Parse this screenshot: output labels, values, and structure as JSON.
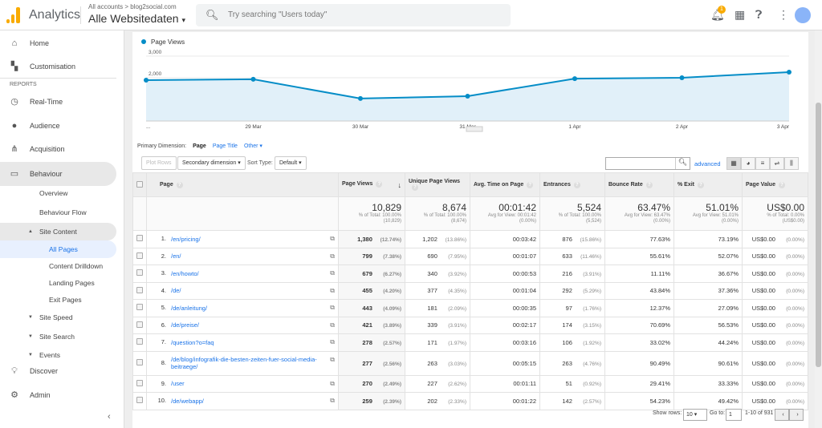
{
  "header": {
    "app_name": "Analytics",
    "breadcrumb": "All accounts > blog2social.com",
    "property": "Alle Websitedaten",
    "search_placeholder": "Try searching \"Users today\"",
    "notification_count": "1"
  },
  "sidebar": {
    "reports_label": "REPORTS",
    "items": [
      {
        "label": "Home",
        "icon": "home-icon"
      },
      {
        "label": "Customisation",
        "icon": "dashboard-icon"
      },
      {
        "label": "Real-Time",
        "icon": "clock-icon"
      },
      {
        "label": "Audience",
        "icon": "person-icon"
      },
      {
        "label": "Acquisition",
        "icon": "acquisition-icon"
      },
      {
        "label": "Behaviour",
        "icon": "behaviour-icon"
      },
      {
        "label": "Overview"
      },
      {
        "label": "Behaviour Flow"
      },
      {
        "label": "Site Content"
      },
      {
        "label": "All Pages"
      },
      {
        "label": "Content Drilldown"
      },
      {
        "label": "Landing Pages"
      },
      {
        "label": "Exit Pages"
      },
      {
        "label": "Site Speed"
      },
      {
        "label": "Site Search"
      },
      {
        "label": "Events"
      },
      {
        "label": "Discover",
        "icon": "lightbulb-icon"
      },
      {
        "label": "Admin",
        "icon": "gear-icon"
      }
    ]
  },
  "chart_data": {
    "type": "area",
    "series": [
      {
        "name": "Page Views",
        "values": [
          1890,
          1930,
          1040,
          1150,
          1960,
          2000,
          2260
        ]
      }
    ],
    "categories": [
      "...",
      "29 Mar",
      "30 Mar",
      "31 Mar",
      "1 Apr",
      "2 Apr",
      "3 Apr"
    ],
    "y_ticks": [
      "1,000",
      "2,000",
      "3,000"
    ],
    "ylim": [
      0,
      3000
    ],
    "color": "#058dc7",
    "legend": "top-left",
    "grid": true
  },
  "controls": {
    "primary_dimension_label": "Primary Dimension:",
    "dim_page": "Page",
    "dim_page_title": "Page Title",
    "dim_other": "Other ▾",
    "plot_rows": "Plot Rows",
    "secondary_dimension": "Secondary dimension ▾",
    "sort_type_label": "Sort Type:",
    "sort_type": "Default ▾",
    "search_value": "",
    "advanced": "advanced"
  },
  "table": {
    "headers": [
      "Page",
      "Page Views",
      "Unique Page Views",
      "Avg. Time on Page",
      "Entrances",
      "Bounce Rate",
      "% Exit",
      "Page Value"
    ],
    "totals": [
      {
        "value": "10,829",
        "sub1": "% of Total: 100.00%",
        "sub2": "(10,829)"
      },
      {
        "value": "8,674",
        "sub1": "% of Total: 100.00%",
        "sub2": "(8,674)"
      },
      {
        "value": "00:01:42",
        "sub1": "Avg for View: 00:01:42",
        "sub2": "(0.00%)"
      },
      {
        "value": "5,524",
        "sub1": "% of Total: 100.00%",
        "sub2": "(5,524)"
      },
      {
        "value": "63.47%",
        "sub1": "Avg for View: 63.47%",
        "sub2": "(0.00%)"
      },
      {
        "value": "51.01%",
        "sub1": "Avg for View: 51.01%",
        "sub2": "(0.00%)"
      },
      {
        "value": "US$0.00",
        "sub1": "% of Total: 0.00%",
        "sub2": "(US$0.00)"
      }
    ],
    "rows": [
      {
        "n": "1.",
        "page": "/en/pricing/",
        "pv": "1,380",
        "pvp": "(12.74%)",
        "upv": "1,202",
        "upvp": "(13.86%)",
        "avg": "00:03:42",
        "ent": "876",
        "entp": "(15.86%)",
        "br": "77.63%",
        "ex": "73.19%",
        "val": "US$0.00",
        "valp": "(0.00%)"
      },
      {
        "n": "2.",
        "page": "/en/",
        "pv": "799",
        "pvp": "(7.38%)",
        "upv": "690",
        "upvp": "(7.95%)",
        "avg": "00:01:07",
        "ent": "633",
        "entp": "(11.46%)",
        "br": "55.61%",
        "ex": "52.07%",
        "val": "US$0.00",
        "valp": "(0.00%)"
      },
      {
        "n": "3.",
        "page": "/en/howto/",
        "pv": "679",
        "pvp": "(6.27%)",
        "upv": "340",
        "upvp": "(3.92%)",
        "avg": "00:00:53",
        "ent": "216",
        "entp": "(3.91%)",
        "br": "11.11%",
        "ex": "36.67%",
        "val": "US$0.00",
        "valp": "(0.00%)"
      },
      {
        "n": "4.",
        "page": "/de/",
        "pv": "455",
        "pvp": "(4.20%)",
        "upv": "377",
        "upvp": "(4.35%)",
        "avg": "00:01:04",
        "ent": "292",
        "entp": "(5.29%)",
        "br": "43.84%",
        "ex": "37.36%",
        "val": "US$0.00",
        "valp": "(0.00%)"
      },
      {
        "n": "5.",
        "page": "/de/anleitung/",
        "pv": "443",
        "pvp": "(4.09%)",
        "upv": "181",
        "upvp": "(2.09%)",
        "avg": "00:00:35",
        "ent": "97",
        "entp": "(1.76%)",
        "br": "12.37%",
        "ex": "27.09%",
        "val": "US$0.00",
        "valp": "(0.00%)"
      },
      {
        "n": "6.",
        "page": "/de/preise/",
        "pv": "421",
        "pvp": "(3.89%)",
        "upv": "339",
        "upvp": "(3.91%)",
        "avg": "00:02:17",
        "ent": "174",
        "entp": "(3.15%)",
        "br": "70.69%",
        "ex": "56.53%",
        "val": "US$0.00",
        "valp": "(0.00%)"
      },
      {
        "n": "7.",
        "page": "/question?o=faq",
        "pv": "278",
        "pvp": "(2.57%)",
        "upv": "171",
        "upvp": "(1.97%)",
        "avg": "00:03:16",
        "ent": "106",
        "entp": "(1.92%)",
        "br": "33.02%",
        "ex": "44.24%",
        "val": "US$0.00",
        "valp": "(0.00%)"
      },
      {
        "n": "8.",
        "page": "/de/blog/infografik-die-besten-zeiten-fuer-social-media-beitraege/",
        "pv": "277",
        "pvp": "(2.56%)",
        "upv": "263",
        "upvp": "(3.03%)",
        "avg": "00:05:15",
        "ent": "263",
        "entp": "(4.76%)",
        "br": "90.49%",
        "ex": "90.61%",
        "val": "US$0.00",
        "valp": "(0.00%)"
      },
      {
        "n": "9.",
        "page": "/user",
        "pv": "270",
        "pvp": "(2.49%)",
        "upv": "227",
        "upvp": "(2.62%)",
        "avg": "00:01:11",
        "ent": "51",
        "entp": "(0.92%)",
        "br": "29.41%",
        "ex": "33.33%",
        "val": "US$0.00",
        "valp": "(0.00%)"
      },
      {
        "n": "10.",
        "page": "/de/webapp/",
        "pv": "259",
        "pvp": "(2.39%)",
        "upv": "202",
        "upvp": "(2.33%)",
        "avg": "00:01:22",
        "ent": "142",
        "entp": "(2.57%)",
        "br": "54.23%",
        "ex": "49.42%",
        "val": "US$0.00",
        "valp": "(0.00%)"
      }
    ]
  },
  "pagination": {
    "show_rows_label": "Show rows:",
    "show_rows": "10 ▾",
    "goto_label": "Go to:",
    "goto_value": "1",
    "range": "1-10 of 931"
  }
}
